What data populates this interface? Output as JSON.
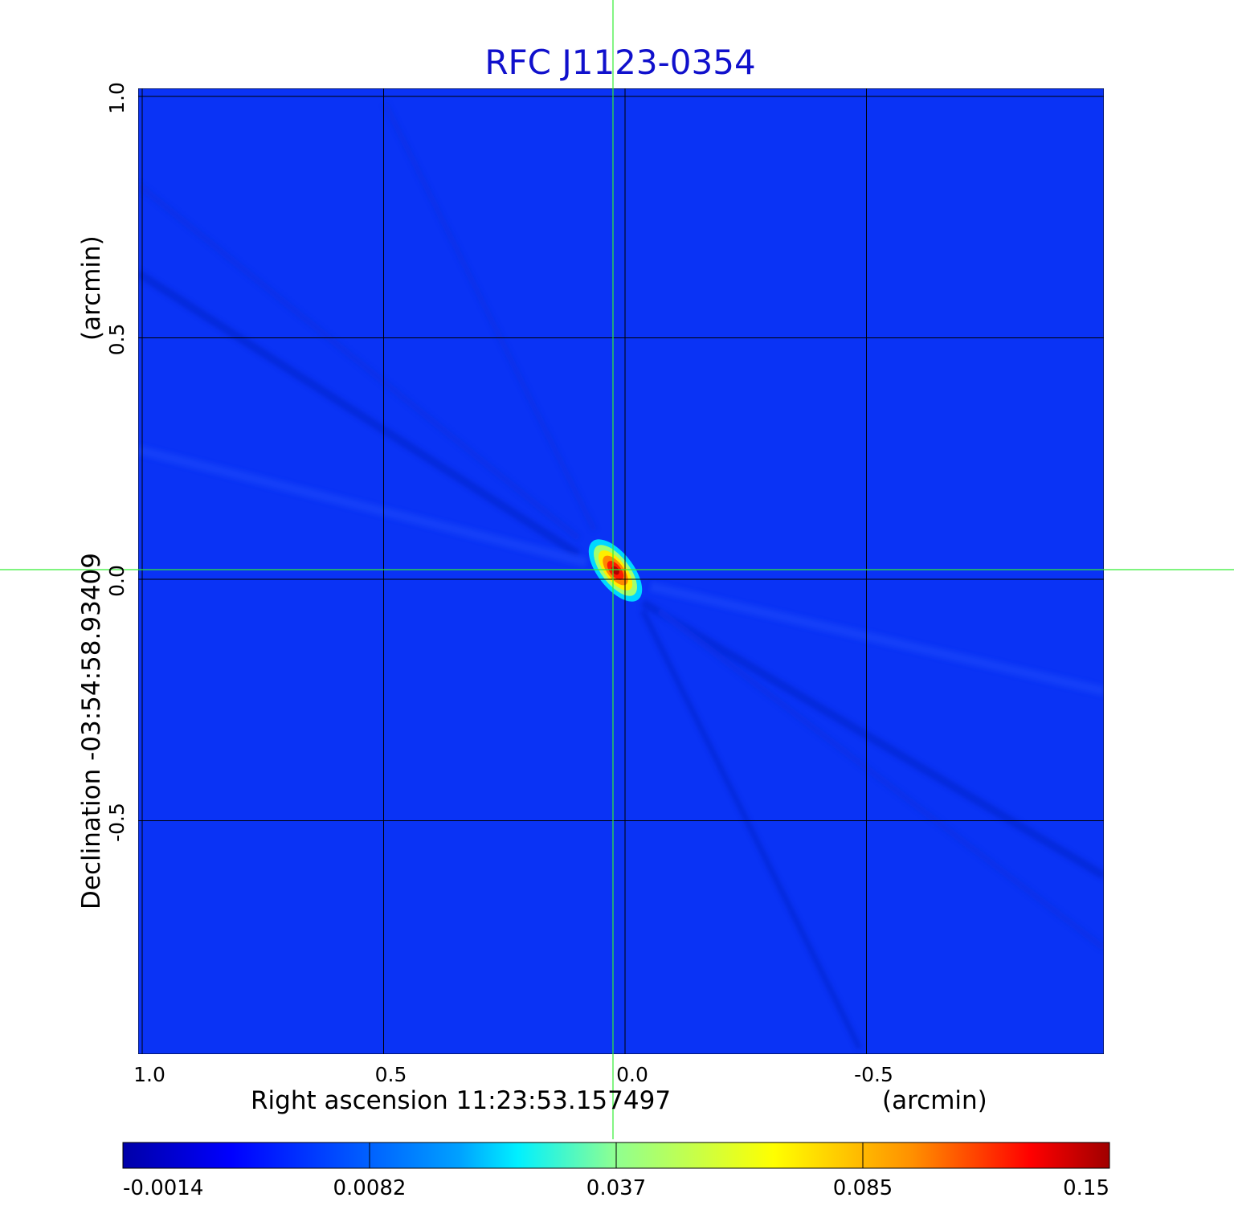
{
  "chart_data": {
    "type": "heatmap",
    "title": "RFC J1123-0354",
    "xlabel": "Right ascension  11:23:53.157497",
    "xunit": "(arcmin)",
    "ylabel": "Declination  -03:54:58.93409",
    "yunit": "(arcmin)",
    "xlim": [
      1.0,
      -1.0
    ],
    "ylim": [
      -1.0,
      1.0
    ],
    "x_ticks": [
      {
        "value": 1.0,
        "label": "1.0"
      },
      {
        "value": 0.5,
        "label": "0.5"
      },
      {
        "value": 0.0,
        "label": "0.0"
      },
      {
        "value": -0.5,
        "label": "-0.5"
      }
    ],
    "y_ticks": [
      {
        "value": 1.0,
        "label": "1.0"
      },
      {
        "value": 0.5,
        "label": "0.5"
      },
      {
        "value": 0.0,
        "label": "0.0"
      },
      {
        "value": -0.5,
        "label": "-0.5"
      }
    ],
    "grid": true,
    "colormap": "jet",
    "colorbar": {
      "placement": "bottom",
      "ticks": [
        "-0.0014",
        "0.0082",
        "0.037",
        "0.085",
        "0.15"
      ],
      "range": [
        -0.0014,
        0.15
      ]
    },
    "source_peak": {
      "x": 0.0,
      "y": 0.0,
      "value": 0.15
    },
    "crosshair": {
      "x": 0.0,
      "y": 0.0
    },
    "colors": {
      "title": "#1010cc",
      "background": "#0a33f5",
      "crosshair": "#33ee33",
      "grid": "#000000"
    }
  }
}
